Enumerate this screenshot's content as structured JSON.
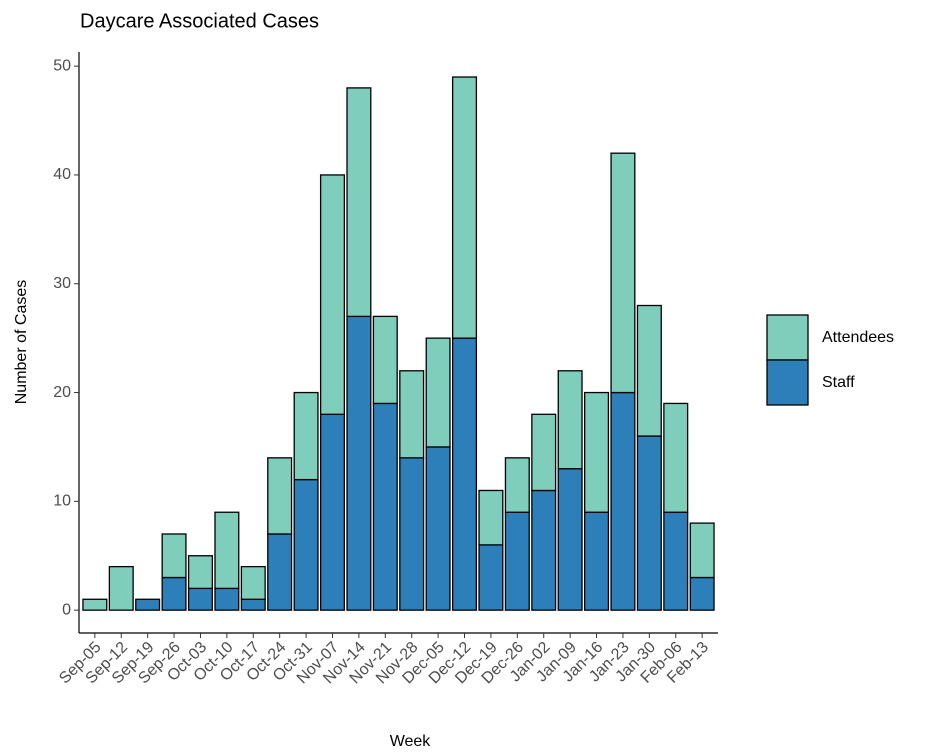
{
  "chart_data": {
    "type": "stacked_bar",
    "title": "Daycare Associated Cases",
    "x_label": "Week",
    "y_label": "Number of Cases",
    "categories": [
      "Sep-05",
      "Sep-12",
      "Sep-19",
      "Sep-26",
      "Oct-03",
      "Oct-10",
      "Oct-17",
      "Oct-24",
      "Oct-31",
      "Nov-07",
      "Nov-14",
      "Nov-21",
      "Nov-28",
      "Dec-05",
      "Dec-12",
      "Dec-19",
      "Dec-26",
      "Jan-02",
      "Jan-09",
      "Jan-16",
      "Jan-23",
      "Jan-30",
      "Feb-06",
      "Feb-13"
    ],
    "series": [
      {
        "name": "Attendees",
        "color": "#7fcdbb",
        "values": [
          1,
          4,
          0,
          4,
          3,
          7,
          3,
          7,
          8,
          22,
          21,
          8,
          8,
          10,
          24,
          5,
          5,
          7,
          9,
          11,
          22,
          12,
          10,
          5
        ]
      },
      {
        "name": "Staff",
        "color": "#2c7fb8",
        "values": [
          0,
          0,
          1,
          3,
          2,
          2,
          1,
          7,
          12,
          18,
          27,
          19,
          14,
          15,
          25,
          6,
          9,
          11,
          13,
          9,
          20,
          16,
          9,
          3
        ]
      }
    ],
    "ylim": [
      -2.1,
      51.3
    ],
    "yticks": [
      0,
      10,
      20,
      30,
      40,
      50
    ],
    "legend": "right"
  }
}
